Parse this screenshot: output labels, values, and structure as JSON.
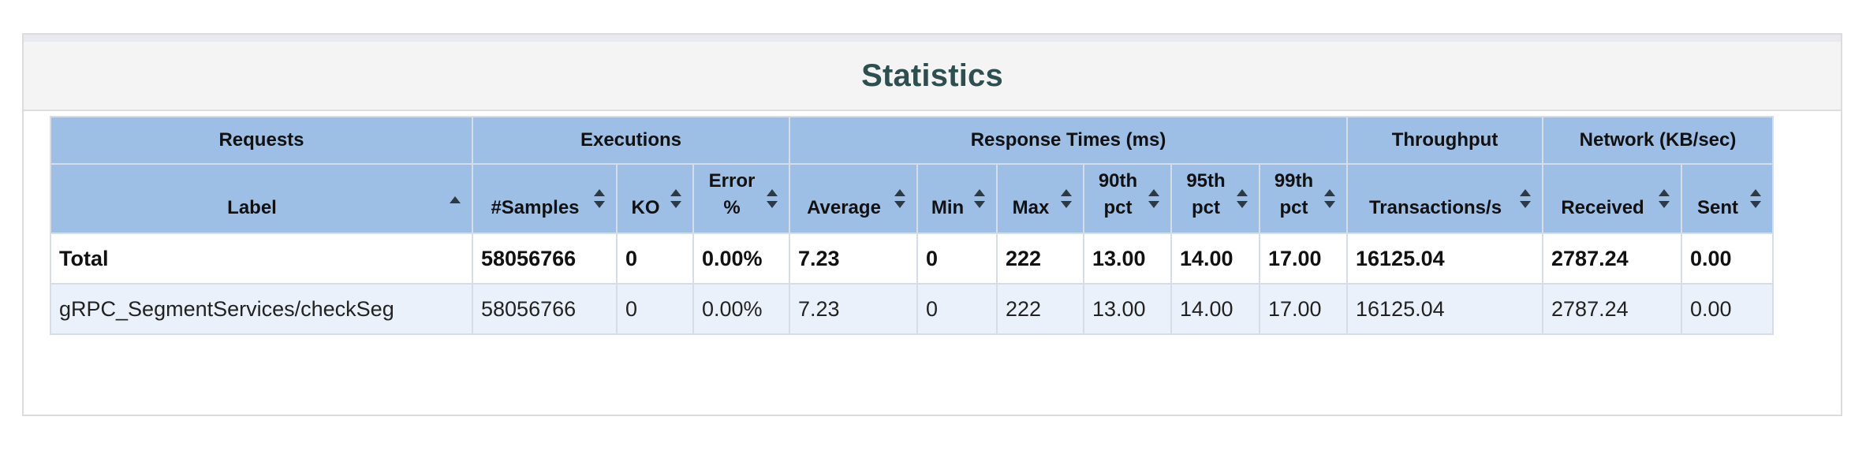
{
  "panel": {
    "title": "Statistics"
  },
  "table": {
    "groups": [
      {
        "label": "Requests"
      },
      {
        "label": "Executions"
      },
      {
        "label": "Response Times (ms)"
      },
      {
        "label": "Throughput"
      },
      {
        "label": "Network (KB/sec)"
      }
    ],
    "columns": [
      {
        "label": "Label",
        "sort": "ascending"
      },
      {
        "label": "#Samples",
        "sort": "both"
      },
      {
        "label": "KO",
        "sort": "both"
      },
      {
        "label": "Error %",
        "sort": "both"
      },
      {
        "label": "Average",
        "sort": "both"
      },
      {
        "label": "Min",
        "sort": "both"
      },
      {
        "label": "Max",
        "sort": "both"
      },
      {
        "label": "90th pct",
        "sort": "both"
      },
      {
        "label": "95th pct",
        "sort": "both"
      },
      {
        "label": "99th pct",
        "sort": "both"
      },
      {
        "label": "Transactions/s",
        "sort": "both"
      },
      {
        "label": "Received",
        "sort": "both"
      },
      {
        "label": "Sent",
        "sort": "both"
      }
    ],
    "rows": [
      {
        "type": "total",
        "cells": [
          "Total",
          "58056766",
          "0",
          "0.00%",
          "7.23",
          "0",
          "222",
          "13.00",
          "14.00",
          "17.00",
          "16125.04",
          "2787.24",
          "0.00"
        ]
      },
      {
        "type": "data",
        "cells": [
          "gRPC_SegmentServices/checkSeg",
          "58056766",
          "0",
          "0.00%",
          "7.23",
          "0",
          "222",
          "13.00",
          "14.00",
          "17.00",
          "16125.04",
          "2787.24",
          "0.00"
        ]
      }
    ]
  },
  "icons": {
    "sort_both": "sort-both-icon",
    "sort_ascending": "sort-ascending-icon"
  },
  "colors": {
    "title": "#2d4f4f",
    "header_bg": "#9dbfe5",
    "odd_row_bg": "#eaf1fa"
  }
}
